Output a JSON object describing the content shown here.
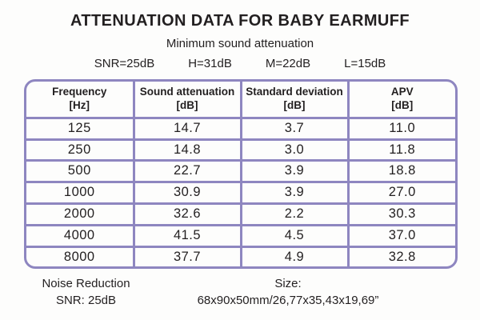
{
  "title": "ATTENUATION DATA FOR BABY EARMUFF",
  "subtitle": "Minimum sound attenuation",
  "summary": {
    "items": [
      "SNR=25dB",
      "H=31dB",
      "M=22dB",
      "L=15dB"
    ]
  },
  "table": {
    "columns": [
      {
        "label": "Frequency",
        "unit": "[Hz]"
      },
      {
        "label": "Sound attenuation",
        "unit": "[dB]"
      },
      {
        "label": "Standard deviation",
        "unit": "[dB]"
      },
      {
        "label": "APV",
        "unit": "[dB]"
      }
    ],
    "rows": [
      [
        "125",
        "14.7",
        "3.7",
        "11.0"
      ],
      [
        "250",
        "14.8",
        "3.0",
        "11.8"
      ],
      [
        "500",
        "22.7",
        "3.9",
        "18.8"
      ],
      [
        "1000",
        "30.9",
        "3.9",
        "27.0"
      ],
      [
        "2000",
        "32.6",
        "2.2",
        "30.3"
      ],
      [
        "4000",
        "41.5",
        "4.5",
        "37.0"
      ],
      [
        "8000",
        "37.7",
        "4.9",
        "32.8"
      ]
    ]
  },
  "footer": {
    "noise_reduction_line1": "Noise Reduction",
    "noise_reduction_line2": "SNR: 25dB",
    "size_line1": "Size:",
    "size_line2": "68x90x50mm/26,77x35,43x19,69”"
  },
  "colors": {
    "table_border": "#8e86c0",
    "text": "#221f20",
    "background": "#fdfdfc"
  },
  "chart_data": {
    "type": "table",
    "title": "ATTENUATION DATA FOR BABY EARMUFF",
    "subtitle": "Minimum sound attenuation",
    "summary_values": {
      "SNR": "25dB",
      "H": "31dB",
      "M": "22dB",
      "L": "15dB"
    },
    "columns": [
      "Frequency [Hz]",
      "Sound attenuation [dB]",
      "Standard deviation [dB]",
      "APV [dB]"
    ],
    "frequencies_hz": [
      125,
      250,
      500,
      1000,
      2000,
      4000,
      8000
    ],
    "sound_attenuation_db": [
      14.7,
      14.8,
      22.7,
      30.9,
      32.6,
      41.5,
      37.7
    ],
    "standard_deviation_db": [
      3.7,
      3.0,
      3.9,
      3.9,
      2.2,
      4.5,
      4.9
    ],
    "apv_db": [
      11.0,
      11.8,
      18.8,
      27.0,
      30.3,
      37.0,
      32.8
    ],
    "noise_reduction_snr": "25dB",
    "size": "68x90x50mm/26,77x35,43x19,69”"
  }
}
